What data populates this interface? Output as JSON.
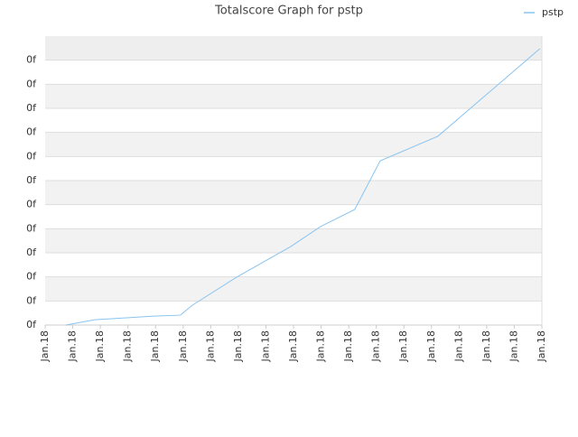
{
  "chart_data": {
    "type": "line",
    "title": "Totalscore Graph for pstp",
    "x": [
      0.75,
      1.8,
      2.95,
      3.93,
      4.9,
      5.33,
      6.94,
      8.9,
      9.98,
      11.22,
      12.14,
      14.23,
      17.93
    ],
    "series": [
      {
        "name": "pstp",
        "color": "#88c4f0",
        "values": [
          0,
          0.22,
          0.3,
          0.37,
          0.41,
          0.82,
          1.99,
          3.26,
          4.09,
          4.8,
          6.82,
          7.84,
          11.48
        ]
      }
    ],
    "xlim": [
      0,
      18
    ],
    "xticks": [
      {
        "value": 0,
        "label": "Jan.18"
      },
      {
        "value": 1,
        "label": "Jan.18"
      },
      {
        "value": 2,
        "label": "Jan.18"
      },
      {
        "value": 3,
        "label": "Jan.18"
      },
      {
        "value": 4,
        "label": "Jan.18"
      },
      {
        "value": 5,
        "label": "Jan.18"
      },
      {
        "value": 6,
        "label": "Jan.18"
      },
      {
        "value": 7,
        "label": "Jan.18"
      },
      {
        "value": 8,
        "label": "Jan.18"
      },
      {
        "value": 9,
        "label": "Jan.18"
      },
      {
        "value": 10,
        "label": "Jan.18"
      },
      {
        "value": 11,
        "label": "Jan.18"
      },
      {
        "value": 12,
        "label": "Jan.18"
      },
      {
        "value": 13,
        "label": "Jan.18"
      },
      {
        "value": 14,
        "label": "Jan.18"
      },
      {
        "value": 15,
        "label": "Jan.18"
      },
      {
        "value": 16,
        "label": "Jan.18"
      },
      {
        "value": 17,
        "label": "Jan.18"
      },
      {
        "value": 18,
        "label": "Jan.18"
      }
    ],
    "ylim": [
      0,
      12
    ],
    "yticks": [
      {
        "value": 0,
        "label": "0f"
      },
      {
        "value": 1,
        "label": "0f"
      },
      {
        "value": 2,
        "label": "0f"
      },
      {
        "value": 3,
        "label": "0f"
      },
      {
        "value": 4,
        "label": "0f"
      },
      {
        "value": 5,
        "label": "0f"
      },
      {
        "value": 6,
        "label": "0f"
      },
      {
        "value": 7,
        "label": "0f"
      },
      {
        "value": 8,
        "label": "0f"
      },
      {
        "value": 9,
        "label": "0f"
      },
      {
        "value": 10,
        "label": "0f"
      },
      {
        "value": 11,
        "label": "0f"
      }
    ],
    "grid": true,
    "legend": "top-right"
  }
}
